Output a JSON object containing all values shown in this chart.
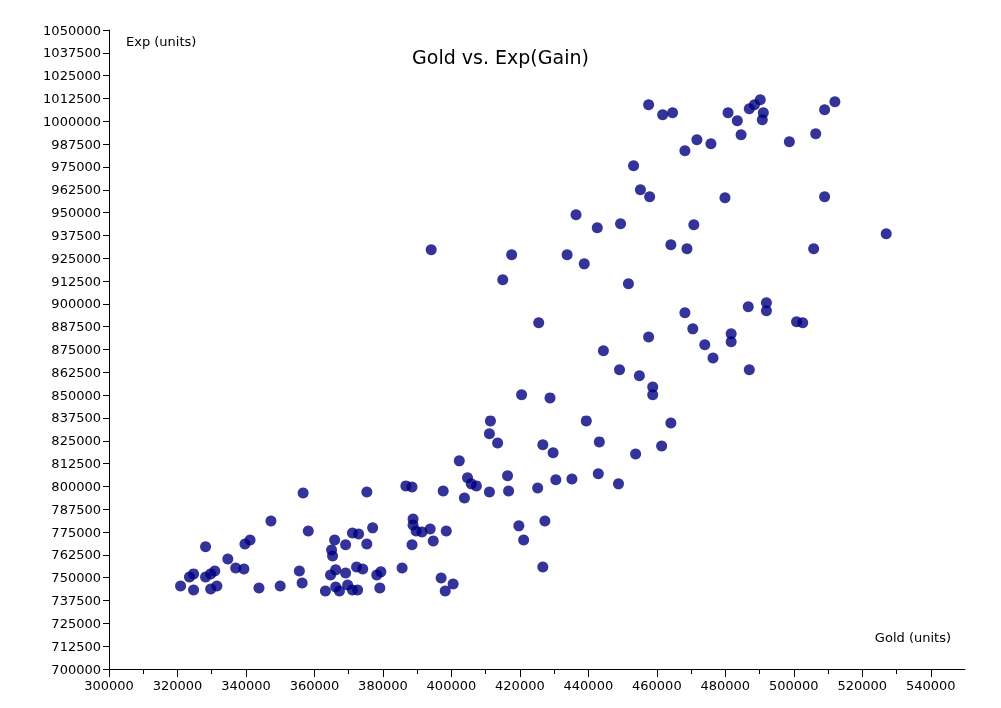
{
  "chart_data": {
    "type": "scatter",
    "title": "Gold vs. Exp(Gain)",
    "xlabel": "Gold (units)",
    "ylabel": "Exp (units)",
    "xlim": [
      300000,
      550000
    ],
    "xticks": [
      300000,
      320000,
      340000,
      360000,
      380000,
      400000,
      420000,
      440000,
      460000,
      480000,
      500000,
      520000,
      540000
    ],
    "ylim": [
      700000,
      1050000
    ],
    "yticks": [
      700000,
      712500,
      725000,
      737500,
      750000,
      762500,
      775000,
      787500,
      800000,
      812500,
      825000,
      837500,
      850000,
      862500,
      875000,
      887500,
      900000,
      912500,
      925000,
      937500,
      950000,
      962500,
      975000,
      987500,
      1000000,
      1012500,
      1025000,
      1037500,
      1050000
    ],
    "grid": false,
    "marker": "circle",
    "series": [
      {
        "color": "#000080",
        "x": [
          356700,
          375300,
          386700,
          388500,
          397600,
          347300,
          328200,
          334700,
          337000,
          339400,
          339700,
          341200,
          358200,
          355600,
          356400,
          343800,
          350000,
          320900,
          324700,
          323500,
          324700,
          328200,
          329700,
          330900,
          329700,
          331500,
          365900,
          365000,
          365300,
          369100,
          371100,
          372900,
          375300,
          377000,
          366200,
          364700,
          369100,
          372300,
          374100,
          378200,
          379400,
          385600,
          363200,
          366200,
          367300,
          369700,
          371100,
          372600,
          379100,
          388500,
          388800,
          388800,
          389700,
          391400,
          393800,
          394700,
          398500,
          397000,
          398200,
          400500,
          394100,
          417600,
          415000,
          425500,
          420500,
          428800,
          411400,
          411100,
          413500,
          426700,
          429700,
          402300,
          404700,
          405800,
          407300,
          416400,
          416700,
          411100,
          425200,
          430500,
          403800,
          419700,
          427300,
          421100,
          426700,
          443200,
          461400,
          453800,
          435200,
          442900,
          448800,
          457600,
          461700,
          464600,
          480800,
          483500,
          487000,
          488500,
          490200,
          491100,
          490800,
          512000,
          509000,
          484600,
          506400,
          498700,
          471700,
          475800,
          468200,
          453200,
          455200,
          457900,
          479900,
          509000,
          436400,
          449400,
          442600,
          470800,
          527000,
          433800,
          438800,
          464100,
          468800,
          505800,
          451700,
          468200,
          486700,
          492000,
          492000,
          500800,
          502600,
          470500,
          481700,
          481700,
          457600,
          474000,
          476400,
          444400,
          449100,
          454900,
          487000,
          458800,
          458800,
          439400,
          464100
        ],
        "values": [
          796400,
          797000,
          800300,
          799700,
          797500,
          781100,
          766900,
          760300,
          755300,
          754800,
          768500,
          770700,
          775600,
          753700,
          747100,
          744400,
          745500,
          745500,
          743300,
          750400,
          752100,
          750400,
          752100,
          753700,
          743800,
          745500,
          770700,
          765200,
          761900,
          768000,
          774500,
          774000,
          768500,
          777300,
          754300,
          751500,
          752600,
          755900,
          754800,
          751500,
          753200,
          755300,
          742700,
          744900,
          742700,
          746000,
          743300,
          743300,
          744400,
          768000,
          782200,
          778900,
          775600,
          775100,
          776700,
          770100,
          775600,
          749900,
          742700,
          746600,
          929600,
          926900,
          913200,
          889600,
          850200,
          848500,
          835900,
          828800,
          823800,
          822800,
          818400,
          814000,
          804700,
          801400,
          800300,
          805800,
          797500,
          797000,
          799200,
          803600,
          793700,
          778400,
          781100,
          770700,
          755900,
          824400,
          822200,
          817800,
          804100,
          806900,
          801400,
          1009100,
          1003600,
          1004700,
          1004700,
          1000300,
          1006900,
          1009100,
          1011800,
          1004700,
          1000900,
          1010700,
          1006300,
          992600,
          993200,
          988800,
          989900,
          987700,
          983900,
          975600,
          962500,
          958700,
          958100,
          958700,
          948800,
          943900,
          941700,
          943300,
          938400,
          926900,
          921900,
          932400,
          930200,
          930200,
          911000,
          895100,
          898400,
          900600,
          896200,
          890200,
          889600,
          886300,
          883600,
          879200,
          881900,
          877600,
          870400,
          874300,
          863900,
          860600,
          863900,
          854500,
          850200,
          835900,
          834800
        ]
      }
    ]
  }
}
